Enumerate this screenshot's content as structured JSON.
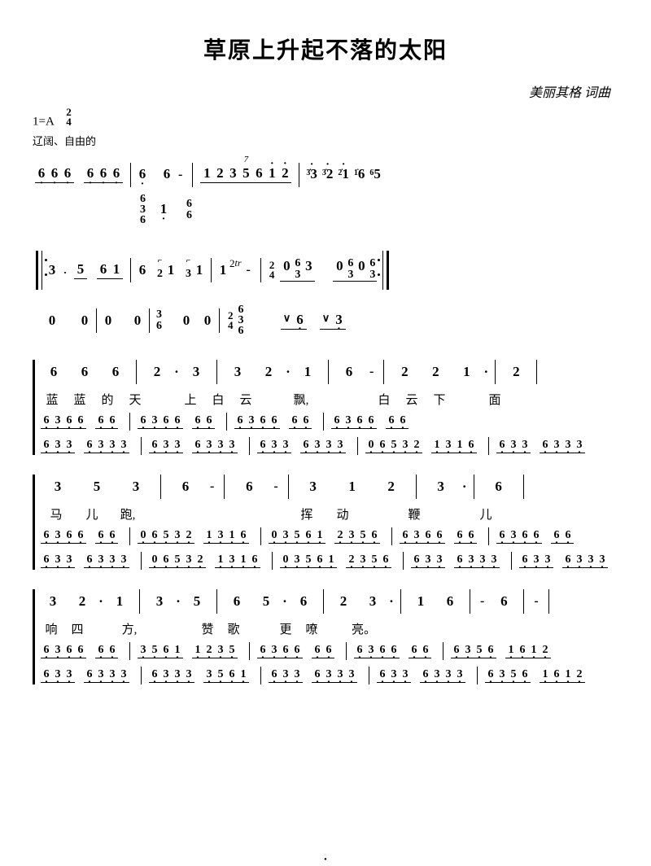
{
  "title": "草原上升起不落的太阳",
  "credit": "美丽其格 词曲",
  "key_sig": "1=A",
  "time_sig_top": "2",
  "time_sig_bot": "4",
  "expression": "辽阔、自由的",
  "intro": {
    "groups": [
      [
        "6",
        "6",
        "6"
      ],
      [
        "6",
        "6",
        "6"
      ]
    ],
    "sustain": [
      "6",
      "6",
      "-"
    ],
    "run": [
      "1",
      "2",
      "3",
      "5",
      "6",
      "1",
      "2"
    ],
    "tail": [
      {
        "orn": "3",
        "main": "3"
      },
      {
        "orn": "3",
        "main": "2"
      },
      {
        "orn": "2",
        "main": "1"
      },
      {
        "orn": "1",
        "main": "6"
      },
      {
        "orn": "6",
        "main": "5"
      }
    ],
    "chord_stack1": [
      "6",
      "3",
      "6"
    ],
    "chord_mid": "1",
    "chord_stack2": [
      "6",
      "6"
    ],
    "run_label": "7"
  },
  "line2": {
    "top": [
      "3",
      "5",
      "6",
      "1",
      "6",
      "1",
      "1",
      "1",
      "-"
    ],
    "top_orn": [
      "2",
      "3"
    ],
    "top_tr": "tr",
    "ts": {
      "t": "2",
      "b": "4"
    },
    "top_end": [
      {
        "pre": "0",
        "stack": [
          "6",
          "3"
        ],
        "post": "3"
      },
      {
        "pre": "0",
        "stack": [
          "6",
          "3"
        ],
        "post": "0",
        "stack2": [
          "6",
          "3"
        ]
      }
    ],
    "bot": [
      "0",
      "0",
      "0",
      "0"
    ],
    "bot_stack": [
      "3",
      "6"
    ],
    "bot_mid": [
      "0",
      "0"
    ],
    "bot_end_stack": [
      "6",
      "3",
      "6"
    ],
    "bot_tail": [
      "6",
      "3"
    ]
  },
  "melody1": {
    "notes": [
      "6",
      "6",
      "6",
      "2",
      ".",
      "3",
      "3",
      "2",
      ".",
      "1",
      "6",
      "-",
      "2",
      "2",
      "1",
      ".",
      "2"
    ],
    "lyrics": [
      "蓝",
      "蓝",
      "的",
      "天",
      "",
      "上",
      "白",
      "云",
      "",
      "飘,",
      "",
      "",
      "白",
      "云",
      "下",
      "",
      "面"
    ]
  },
  "accomp1": {
    "top": [
      [
        "6",
        "3",
        "6",
        "6"
      ],
      [
        "6",
        "6"
      ],
      [
        "6",
        "3",
        "6",
        "6"
      ],
      [
        "6",
        "6"
      ],
      [
        "6",
        "3",
        "6",
        "6"
      ],
      [
        "6",
        "6"
      ],
      [
        "6",
        "3",
        "6",
        "6"
      ],
      [
        "6",
        "6"
      ]
    ],
    "bot": [
      [
        "6",
        "3",
        "3"
      ],
      [
        "6",
        "3",
        "3",
        "3"
      ],
      [
        "6",
        "3",
        "3"
      ],
      [
        "6",
        "3",
        "3",
        "3"
      ],
      [
        "6",
        "3",
        "3"
      ],
      [
        "6",
        "3",
        "3",
        "3"
      ],
      [
        "0",
        "6",
        "5",
        "3",
        "2"
      ],
      [
        "1",
        "3",
        "1",
        "6"
      ],
      [
        "6",
        "3",
        "3"
      ],
      [
        "6",
        "3",
        "3",
        "3"
      ]
    ]
  },
  "melody2": {
    "notes": [
      "3",
      "5",
      "3",
      "6",
      "-",
      "6",
      "-",
      "3",
      "1",
      "2",
      "3",
      ".",
      "6"
    ],
    "lyrics": [
      "马",
      "儿",
      "跑,",
      "",
      "",
      "",
      "",
      "挥",
      "动",
      "",
      "鞭",
      "",
      "儿"
    ]
  },
  "accomp2": {
    "top": [
      [
        "6",
        "3",
        "6",
        "6"
      ],
      [
        "6",
        "6"
      ],
      [
        "0",
        "6",
        "5",
        "3",
        "2"
      ],
      [
        "1",
        "3",
        "1",
        "6"
      ],
      [
        "0",
        "3",
        "5",
        "6",
        "1"
      ],
      [
        "2",
        "3",
        "5",
        "6"
      ],
      [
        "6",
        "3",
        "6",
        "6"
      ],
      [
        "6",
        "6"
      ],
      [
        "6",
        "3",
        "6",
        "6"
      ],
      [
        "6",
        "6"
      ]
    ],
    "bot": [
      [
        "6",
        "3",
        "3"
      ],
      [
        "6",
        "3",
        "3",
        "3"
      ]
    ]
  },
  "melody3": {
    "notes": [
      "3",
      "2",
      ".",
      "1",
      "3",
      ".",
      "5",
      "6",
      "5",
      ".",
      "6",
      "2",
      "3",
      ".",
      "1",
      "6",
      "-",
      "6",
      "-"
    ],
    "lyrics": [
      "响",
      "四",
      "",
      "方,",
      "",
      "",
      "赞",
      "歌",
      "",
      "更",
      "嘹",
      "",
      "亮。",
      "",
      "",
      "",
      ""
    ]
  },
  "accomp3": {
    "top": [
      [
        "6",
        "3",
        "6",
        "6"
      ],
      [
        "6",
        "6"
      ],
      [
        "3",
        "5",
        "6",
        "1"
      ],
      [
        "1",
        "2",
        "3",
        "5"
      ],
      [
        "6",
        "3",
        "6",
        "6"
      ],
      [
        "6",
        "6"
      ],
      [
        "6",
        "3",
        "6",
        "6"
      ],
      [
        "6",
        "6"
      ],
      [
        "6",
        "3",
        "5",
        "6"
      ],
      [
        "1",
        "6",
        "1",
        "2"
      ]
    ],
    "bot": [
      [
        "6",
        "3",
        "3"
      ],
      [
        "6",
        "3",
        "3",
        "3"
      ],
      [
        "6",
        "3",
        "3",
        "3"
      ],
      [
        "3",
        "5",
        "6",
        "1"
      ],
      [
        "6",
        "3",
        "3"
      ],
      [
        "6",
        "3",
        "3",
        "3"
      ],
      [
        "6",
        "3",
        "3"
      ],
      [
        "6",
        "3",
        "3",
        "3"
      ],
      [
        "6",
        "3",
        "5",
        "6"
      ],
      [
        "1",
        "6",
        "1",
        "2"
      ]
    ]
  },
  "colors": {
    "bg": "#ffffff",
    "ink": "#000000"
  }
}
